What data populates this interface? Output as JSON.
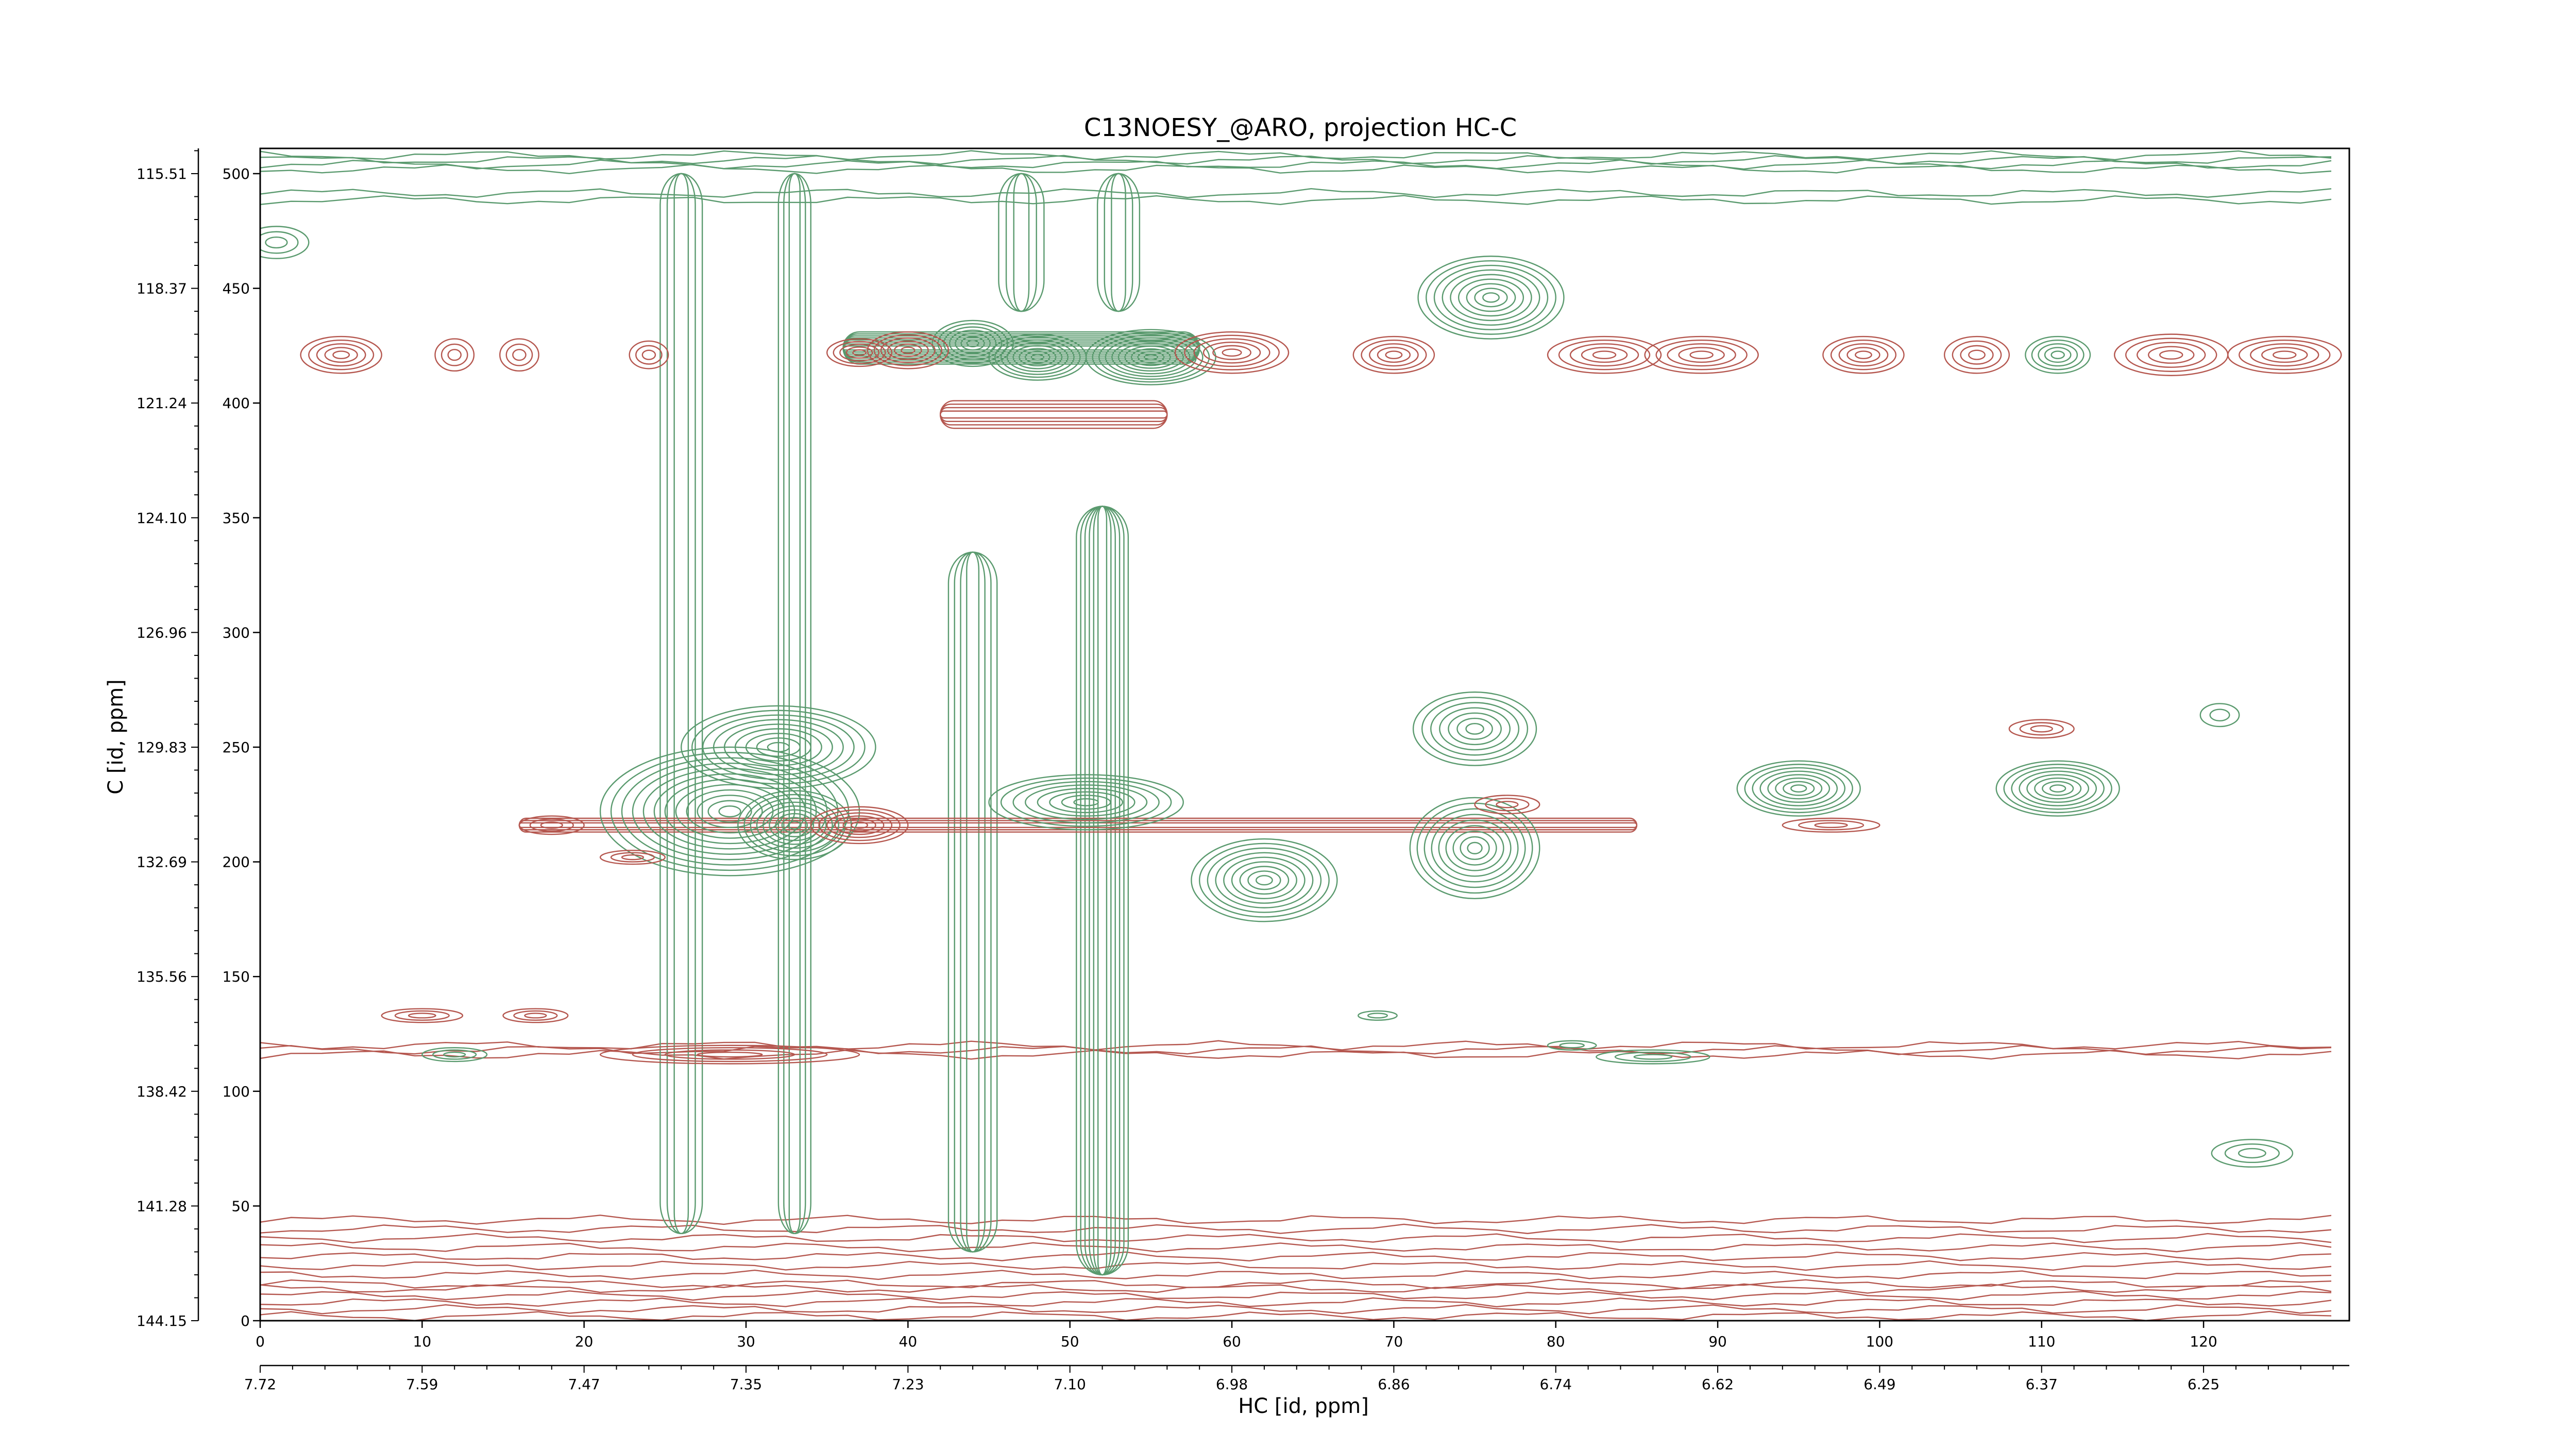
{
  "chart_data": {
    "type": "contour",
    "title": "C13NOESY_@ARO, projection HC-C",
    "xlabel": "HC [id, ppm]",
    "ylabel": "C [id, ppm]",
    "xlim": [
      0,
      129
    ],
    "ylim": [
      0,
      511
    ],
    "x_index_ticks": [
      0,
      10,
      20,
      30,
      40,
      50,
      60,
      70,
      80,
      90,
      100,
      110,
      120
    ],
    "x_ppm_ticks": [
      {
        "index": 0,
        "label": "7.72"
      },
      {
        "index": 10,
        "label": "7.59"
      },
      {
        "index": 20,
        "label": "7.47"
      },
      {
        "index": 30,
        "label": "7.35"
      },
      {
        "index": 40,
        "label": "7.23"
      },
      {
        "index": 50,
        "label": "7.10"
      },
      {
        "index": 60,
        "label": "6.98"
      },
      {
        "index": 70,
        "label": "6.86"
      },
      {
        "index": 80,
        "label": "6.74"
      },
      {
        "index": 90,
        "label": "6.62"
      },
      {
        "index": 100,
        "label": "6.49"
      },
      {
        "index": 110,
        "label": "6.37"
      },
      {
        "index": 120,
        "label": "6.25"
      }
    ],
    "y_index_ticks": [
      0,
      50,
      100,
      150,
      200,
      250,
      300,
      350,
      400,
      450,
      500
    ],
    "y_ppm_ticks": [
      {
        "index": 500,
        "label": "115.51"
      },
      {
        "index": 450,
        "label": "118.37"
      },
      {
        "index": 400,
        "label": "121.24"
      },
      {
        "index": 350,
        "label": "124.10"
      },
      {
        "index": 300,
        "label": "126.96"
      },
      {
        "index": 250,
        "label": "129.83"
      },
      {
        "index": 200,
        "label": "132.69"
      },
      {
        "index": 150,
        "label": "135.56"
      },
      {
        "index": 100,
        "label": "138.42"
      },
      {
        "index": 50,
        "label": "141.28"
      },
      {
        "index": 0,
        "label": "144.15"
      }
    ],
    "colors": {
      "positive": "#5a9a6e",
      "negative": "#b5574f"
    },
    "peaks": [
      {
        "x": 76,
        "y": 446,
        "rx": 4.5,
        "ry": 18,
        "levels": 9,
        "sign": "positive"
      },
      {
        "x": 29,
        "y": 222,
        "rx": 8,
        "ry": 28,
        "levels": 12,
        "sign": "positive"
      },
      {
        "x": 32,
        "y": 250,
        "rx": 6,
        "ry": 18,
        "levels": 9,
        "sign": "positive"
      },
      {
        "x": 33,
        "y": 216,
        "rx": 3.5,
        "ry": 15,
        "levels": 9,
        "sign": "positive"
      },
      {
        "x": 62,
        "y": 192,
        "rx": 4.5,
        "ry": 18,
        "levels": 9,
        "sign": "positive"
      },
      {
        "x": 75,
        "y": 206,
        "rx": 4,
        "ry": 22,
        "levels": 9,
        "sign": "positive"
      },
      {
        "x": 75,
        "y": 258,
        "rx": 3.8,
        "ry": 16,
        "levels": 7,
        "sign": "positive"
      },
      {
        "x": 95,
        "y": 232,
        "rx": 3.8,
        "ry": 12,
        "levels": 8,
        "sign": "positive"
      },
      {
        "x": 111,
        "y": 232,
        "rx": 3.8,
        "ry": 12,
        "levels": 8,
        "sign": "positive"
      },
      {
        "x": 51,
        "y": 226,
        "rx": 6,
        "ry": 12,
        "levels": 8,
        "sign": "positive"
      },
      {
        "x": 55,
        "y": 420,
        "rx": 4,
        "ry": 12,
        "levels": 10,
        "sign": "positive"
      },
      {
        "x": 48,
        "y": 420,
        "rx": 3,
        "ry": 10,
        "levels": 8,
        "sign": "positive"
      },
      {
        "x": 44,
        "y": 426,
        "rx": 2.5,
        "ry": 10,
        "levels": 7,
        "sign": "positive"
      },
      {
        "x": 40,
        "y": 423,
        "rx": 2.5,
        "ry": 8,
        "levels": 6,
        "sign": "negative"
      },
      {
        "x": 37,
        "y": 422,
        "rx": 2,
        "ry": 6,
        "levels": 5,
        "sign": "negative"
      },
      {
        "x": 60,
        "y": 422,
        "rx": 3.5,
        "ry": 9,
        "levels": 6,
        "sign": "negative"
      },
      {
        "x": 70,
        "y": 421,
        "rx": 2.5,
        "ry": 8,
        "levels": 5,
        "sign": "negative"
      },
      {
        "x": 83,
        "y": 421,
        "rx": 3.5,
        "ry": 8,
        "levels": 5,
        "sign": "negative"
      },
      {
        "x": 89,
        "y": 421,
        "rx": 3.5,
        "ry": 8,
        "levels": 5,
        "sign": "negative"
      },
      {
        "x": 99,
        "y": 421,
        "rx": 2.5,
        "ry": 8,
        "levels": 5,
        "sign": "negative"
      },
      {
        "x": 106,
        "y": 421,
        "rx": 2,
        "ry": 8,
        "levels": 4,
        "sign": "negative"
      },
      {
        "x": 111,
        "y": 421,
        "rx": 2,
        "ry": 8,
        "levels": 5,
        "sign": "positive"
      },
      {
        "x": 118,
        "y": 421,
        "rx": 3.5,
        "ry": 9,
        "levels": 5,
        "sign": "negative"
      },
      {
        "x": 125,
        "y": 421,
        "rx": 3.5,
        "ry": 8,
        "levels": 5,
        "sign": "negative"
      },
      {
        "x": 5,
        "y": 421,
        "rx": 2.5,
        "ry": 8,
        "levels": 5,
        "sign": "negative"
      },
      {
        "x": 12,
        "y": 421,
        "rx": 1.2,
        "ry": 7,
        "levels": 3,
        "sign": "negative"
      },
      {
        "x": 16,
        "y": 421,
        "rx": 1.2,
        "ry": 7,
        "levels": 3,
        "sign": "negative"
      },
      {
        "x": 24,
        "y": 421,
        "rx": 1.2,
        "ry": 6,
        "levels": 3,
        "sign": "negative"
      },
      {
        "x": 37,
        "y": 216,
        "rx": 3,
        "ry": 8,
        "levels": 6,
        "sign": "negative"
      },
      {
        "x": 23,
        "y": 202,
        "rx": 2,
        "ry": 3,
        "levels": 3,
        "sign": "negative"
      },
      {
        "x": 18,
        "y": 216,
        "rx": 2,
        "ry": 4,
        "levels": 3,
        "sign": "negative"
      },
      {
        "x": 77,
        "y": 225,
        "rx": 2,
        "ry": 4,
        "levels": 3,
        "sign": "negative"
      },
      {
        "x": 110,
        "y": 258,
        "rx": 2,
        "ry": 4,
        "levels": 3,
        "sign": "negative"
      },
      {
        "x": 97,
        "y": 216,
        "rx": 3,
        "ry": 3,
        "levels": 3,
        "sign": "negative"
      },
      {
        "x": 121,
        "y": 264,
        "rx": 1.2,
        "ry": 5,
        "levels": 2,
        "sign": "positive"
      },
      {
        "x": 123,
        "y": 73,
        "rx": 2.5,
        "ry": 6,
        "levels": 3,
        "sign": "positive"
      },
      {
        "x": 12,
        "y": 116,
        "rx": 2,
        "ry": 3,
        "levels": 3,
        "sign": "positive"
      },
      {
        "x": 29,
        "y": 116,
        "rx": 8,
        "ry": 4,
        "levels": 4,
        "sign": "negative"
      },
      {
        "x": 10,
        "y": 133,
        "rx": 2.5,
        "ry": 3,
        "levels": 3,
        "sign": "negative"
      },
      {
        "x": 17,
        "y": 133,
        "rx": 2,
        "ry": 3,
        "levels": 3,
        "sign": "negative"
      },
      {
        "x": 86,
        "y": 115,
        "rx": 3.5,
        "ry": 3,
        "levels": 3,
        "sign": "positive"
      },
      {
        "x": 69,
        "y": 133,
        "rx": 1.2,
        "ry": 2,
        "levels": 2,
        "sign": "positive"
      },
      {
        "x": 81,
        "y": 120,
        "rx": 1.5,
        "ry": 2,
        "levels": 2,
        "sign": "positive"
      },
      {
        "x": 1,
        "y": 470,
        "rx": 2,
        "ry": 7,
        "levels": 3,
        "sign": "positive"
      }
    ],
    "ridges": [
      {
        "x": 44,
        "y0": 30,
        "y1": 335,
        "width": 1.5,
        "levels": 4,
        "sign": "positive"
      },
      {
        "x": 52,
        "y0": 20,
        "y1": 355,
        "width": 1.6,
        "levels": 6,
        "sign": "positive"
      },
      {
        "x": 26,
        "y0": 38,
        "y1": 500,
        "width": 1.3,
        "levels": 3,
        "sign": "positive"
      },
      {
        "x": 33,
        "y0": 38,
        "y1": 500,
        "width": 1,
        "levels": 3,
        "sign": "positive"
      },
      {
        "x": 47,
        "y0": 440,
        "y1": 500,
        "width": 1.4,
        "levels": 3,
        "sign": "positive"
      },
      {
        "x": 53,
        "y0": 440,
        "y1": 500,
        "width": 1.3,
        "levels": 3,
        "sign": "positive"
      }
    ],
    "bands": [
      {
        "y": 505,
        "half": 3,
        "levels": 4,
        "sign": "positive"
      },
      {
        "y": 490,
        "half": 1.5,
        "levels": 2,
        "sign": "positive"
      },
      {
        "y": 118,
        "half": 2,
        "levels": 3,
        "sign": "negative"
      },
      {
        "y": 30,
        "half": 14,
        "levels": 8,
        "sign": "negative"
      },
      {
        "y": 8,
        "half": 6,
        "levels": 5,
        "sign": "negative"
      }
    ],
    "horizontal_streaks": [
      {
        "y": 216,
        "x0": 16,
        "x1": 85,
        "half": 3,
        "levels": 3,
        "sign": "negative"
      },
      {
        "y": 424,
        "x0": 36,
        "x1": 58,
        "half": 7,
        "levels": 8,
        "sign": "positive"
      },
      {
        "y": 395,
        "x0": 42,
        "x1": 56,
        "half": 6,
        "levels": 4,
        "sign": "negative"
      }
    ]
  }
}
